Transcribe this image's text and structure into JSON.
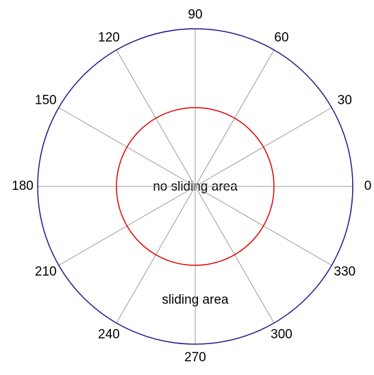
{
  "chart_data": {
    "type": "polar",
    "rlim": [
      0,
      1
    ],
    "thetaticks": [
      0,
      30,
      60,
      90,
      120,
      150,
      180,
      210,
      240,
      270,
      300,
      330
    ],
    "grid": true,
    "circles": [
      {
        "r": 1,
        "color": "#1a1a8c"
      },
      {
        "r": 0.5,
        "color": "#e00000"
      }
    ],
    "annotations": [
      "no sliding area",
      "sliding area"
    ]
  }
}
